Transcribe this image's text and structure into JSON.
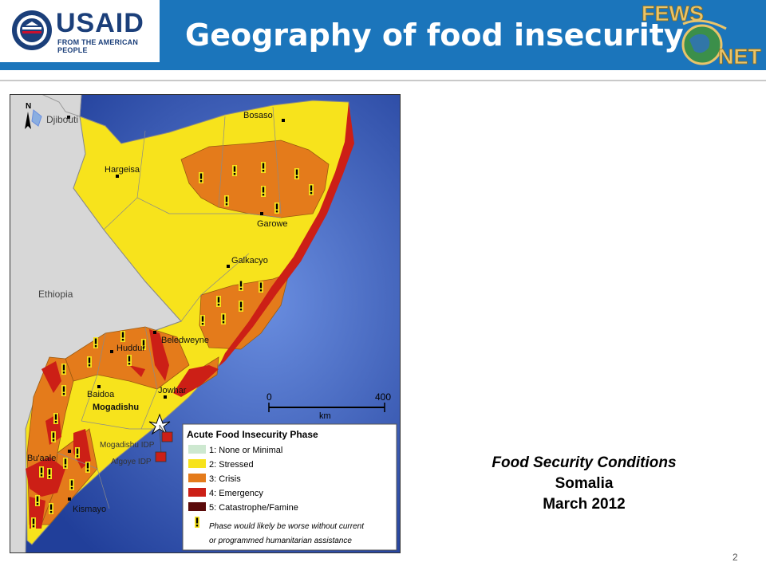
{
  "header": {
    "title": "Geography of food insecurity",
    "usaid_word": "USAID",
    "usaid_tagline": "FROM THE AMERICAN PEOPLE",
    "fews_word_top": "FEWS",
    "fews_word_bottom": "NET"
  },
  "map": {
    "north_label": "N",
    "places": {
      "djibouti": "Djibouti",
      "ethiopia": "Ethiopia",
      "bosaso": "Bosaso",
      "hargeisa": "Hargeisa",
      "garowe": "Garowe",
      "galkacyo": "Galkacyo",
      "beledweyne": "Beledweyne",
      "huddur": "Huddur",
      "baidoa": "Baidoa",
      "jowhar": "Jowhar",
      "mogadishu": "Mogadishu",
      "mogadishu_idp": "Mogadishu IDP",
      "afgoye_idp": "Afgoye IDP",
      "buaale": "Bu'aale",
      "kismayo": "Kismayo"
    },
    "scale": {
      "start": "0",
      "end": "400",
      "unit": "km"
    },
    "legend": {
      "title": "Acute Food Insecurity Phase",
      "items": [
        {
          "label": "1: None or Minimal",
          "color": "#cde8d0"
        },
        {
          "label": "2: Stressed",
          "color": "#f7e31c"
        },
        {
          "label": "3: Crisis",
          "color": "#e47b1b"
        },
        {
          "label": "4: Emergency",
          "color": "#cc1f16"
        },
        {
          "label": "5: Catastrophe/Famine",
          "color": "#5a0a0a"
        }
      ],
      "note_line1": "Phase would likely be worse without current",
      "note_line2": "or programmed humanitarian assistance"
    },
    "colors": {
      "sea": "#3a66c4",
      "land": "#d7d7d7",
      "stressed": "#f7e31c",
      "crisis": "#e47b1b",
      "emergency": "#cc1f16"
    }
  },
  "caption": {
    "line1": "Food Security Conditions",
    "line2": "Somalia",
    "line3": "March 2012"
  },
  "page_number": "2"
}
